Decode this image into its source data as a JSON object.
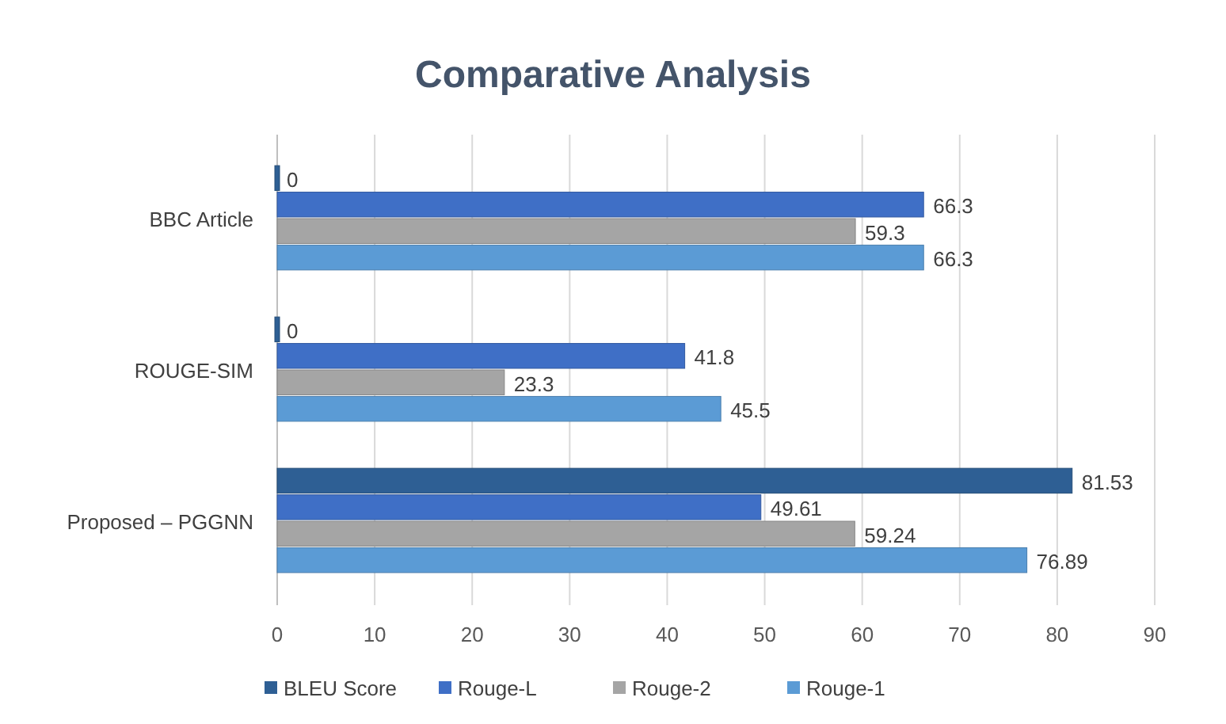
{
  "chart_data": {
    "type": "bar",
    "orientation": "horizontal",
    "title": "Comparative Analysis",
    "categories": [
      "BBC Article",
      "ROUGE-SIM",
      "Proposed – PGGNN"
    ],
    "series": [
      {
        "name": "BLEU Score",
        "color": "#2e5f94",
        "values": [
          0,
          0,
          81.53
        ]
      },
      {
        "name": "Rouge-L",
        "color": "#3f6fc6",
        "values": [
          66.3,
          41.8,
          49.61
        ]
      },
      {
        "name": "Rouge-2",
        "color": "#a5a5a5",
        "values": [
          59.3,
          23.3,
          59.24
        ]
      },
      {
        "name": "Rouge-1",
        "color": "#5b9bd5",
        "values": [
          66.3,
          45.5,
          76.89
        ]
      }
    ],
    "xlim": [
      0,
      90
    ],
    "xticks": [
      0,
      10,
      20,
      30,
      40,
      50,
      60,
      70,
      80,
      90
    ],
    "grid": "x",
    "legend": "bottom",
    "data_labels": true
  }
}
